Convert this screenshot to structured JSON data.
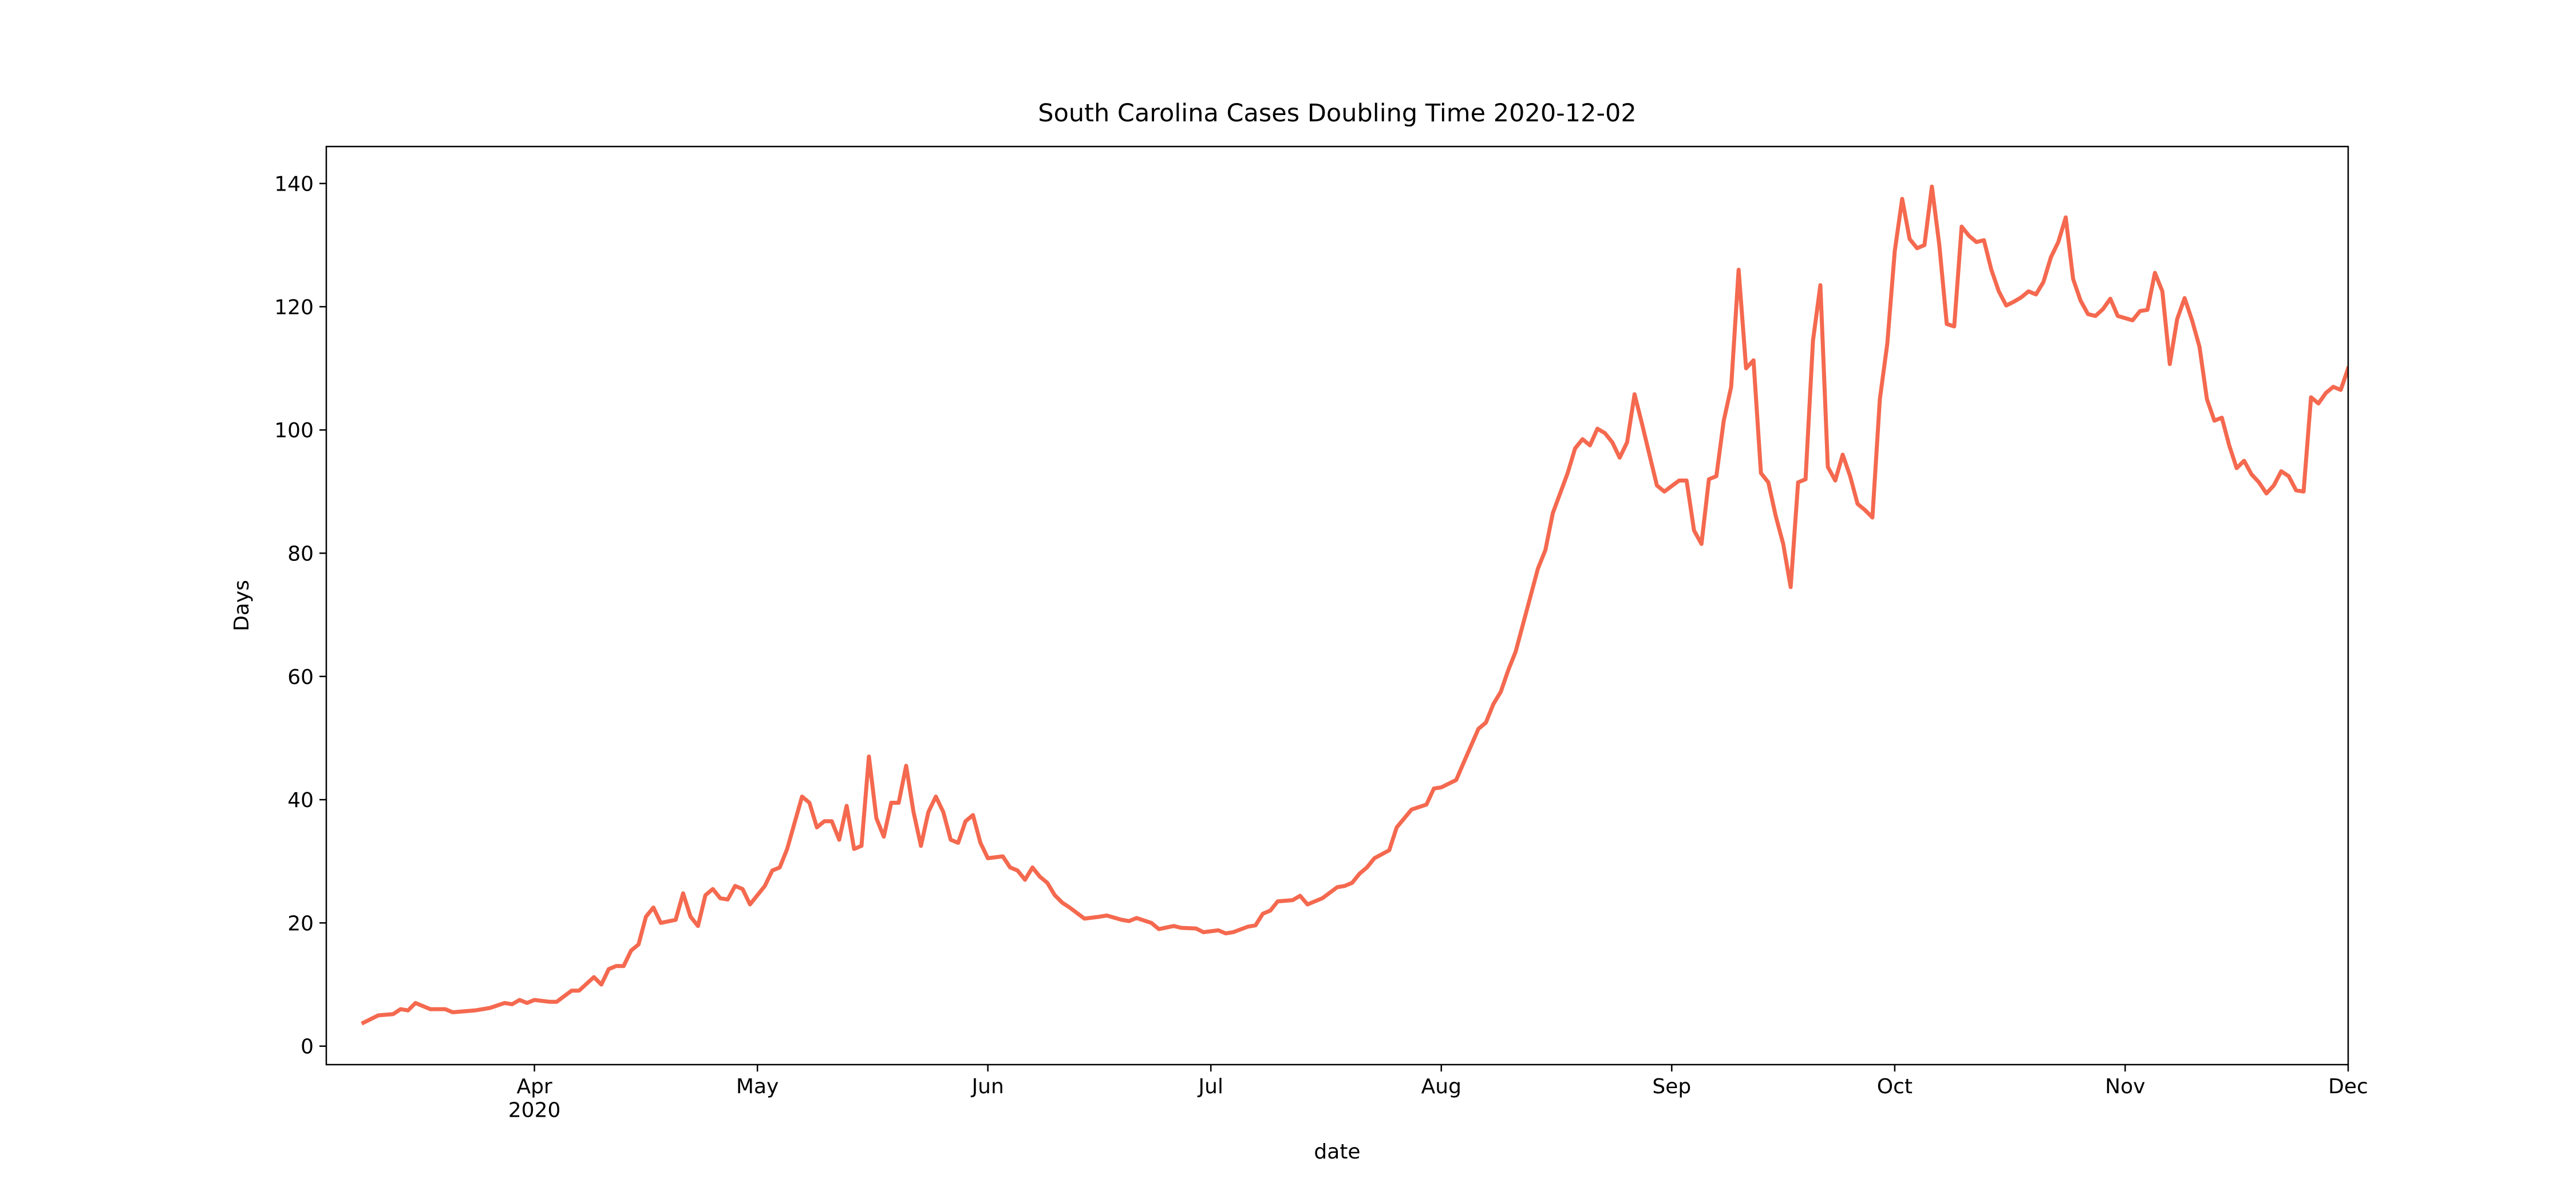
{
  "chart_data": {
    "type": "line",
    "title": "South Carolina Cases Doubling Time 2020-12-02",
    "x_label": "date",
    "y_label": "Days",
    "color": "#f4694f",
    "xlim": [
      "2020-03-04",
      "2020-12-01"
    ],
    "ylim": [
      -3,
      146
    ],
    "xticks": [
      {
        "value": "2020-04-01",
        "label": "Apr\n2020"
      },
      {
        "value": "2020-05-01",
        "label": "May"
      },
      {
        "value": "2020-06-01",
        "label": "Jun"
      },
      {
        "value": "2020-07-01",
        "label": "Jul"
      },
      {
        "value": "2020-08-01",
        "label": "Aug"
      },
      {
        "value": "2020-09-01",
        "label": "Sep"
      },
      {
        "value": "2020-10-01",
        "label": "Oct"
      },
      {
        "value": "2020-11-01",
        "label": "Nov"
      },
      {
        "value": "2020-12-01",
        "label": "Dec"
      }
    ],
    "yticks": [
      0,
      20,
      40,
      60,
      80,
      100,
      120,
      140
    ],
    "x": [
      "2020-03-09",
      "2020-03-11",
      "2020-03-13",
      "2020-03-14",
      "2020-03-15",
      "2020-03-16",
      "2020-03-18",
      "2020-03-20",
      "2020-03-21",
      "2020-03-24",
      "2020-03-26",
      "2020-03-28",
      "2020-03-29",
      "2020-03-30",
      "2020-03-31",
      "2020-04-01",
      "2020-04-03",
      "2020-04-04",
      "2020-04-06",
      "2020-04-07",
      "2020-04-09",
      "2020-04-10",
      "2020-04-11",
      "2020-04-12",
      "2020-04-13",
      "2020-04-14",
      "2020-04-15",
      "2020-04-16",
      "2020-04-17",
      "2020-04-18",
      "2020-04-20",
      "2020-04-21",
      "2020-04-22",
      "2020-04-23",
      "2020-04-24",
      "2020-04-25",
      "2020-04-26",
      "2020-04-27",
      "2020-04-28",
      "2020-04-29",
      "2020-04-30",
      "2020-05-02",
      "2020-05-03",
      "2020-05-04",
      "2020-05-05",
      "2020-05-07",
      "2020-05-08",
      "2020-05-09",
      "2020-05-10",
      "2020-05-11",
      "2020-05-12",
      "2020-05-13",
      "2020-05-14",
      "2020-05-15",
      "2020-05-16",
      "2020-05-17",
      "2020-05-18",
      "2020-05-19",
      "2020-05-20",
      "2020-05-21",
      "2020-05-22",
      "2020-05-23",
      "2020-05-24",
      "2020-05-25",
      "2020-05-26",
      "2020-05-27",
      "2020-05-28",
      "2020-05-29",
      "2020-05-30",
      "2020-05-31",
      "2020-06-01",
      "2020-06-03",
      "2020-06-04",
      "2020-06-05",
      "2020-06-06",
      "2020-06-07",
      "2020-06-08",
      "2020-06-09",
      "2020-06-10",
      "2020-06-11",
      "2020-06-12",
      "2020-06-14",
      "2020-06-16",
      "2020-06-17",
      "2020-06-19",
      "2020-06-20",
      "2020-06-21",
      "2020-06-23",
      "2020-06-24",
      "2020-06-26",
      "2020-06-27",
      "2020-06-29",
      "2020-06-30",
      "2020-07-02",
      "2020-07-03",
      "2020-07-04",
      "2020-07-06",
      "2020-07-07",
      "2020-07-08",
      "2020-07-09",
      "2020-07-10",
      "2020-07-12",
      "2020-07-13",
      "2020-07-14",
      "2020-07-15",
      "2020-07-16",
      "2020-07-18",
      "2020-07-19",
      "2020-07-20",
      "2020-07-21",
      "2020-07-22",
      "2020-07-23",
      "2020-07-25",
      "2020-07-26",
      "2020-07-28",
      "2020-07-30",
      "2020-07-31",
      "2020-08-01",
      "2020-08-03",
      "2020-08-04",
      "2020-08-06",
      "2020-08-07",
      "2020-08-08",
      "2020-08-09",
      "2020-08-10",
      "2020-08-11",
      "2020-08-12",
      "2020-08-13",
      "2020-08-14",
      "2020-08-15",
      "2020-08-16",
      "2020-08-18",
      "2020-08-19",
      "2020-08-20",
      "2020-08-21",
      "2020-08-22",
      "2020-08-23",
      "2020-08-24",
      "2020-08-25",
      "2020-08-26",
      "2020-08-27",
      "2020-08-28",
      "2020-08-29",
      "2020-08-30",
      "2020-08-31",
      "2020-09-02",
      "2020-09-03",
      "2020-09-04",
      "2020-09-05",
      "2020-09-06",
      "2020-09-07",
      "2020-09-08",
      "2020-09-09",
      "2020-09-10",
      "2020-09-11",
      "2020-09-12",
      "2020-09-13",
      "2020-09-14",
      "2020-09-15",
      "2020-09-16",
      "2020-09-17",
      "2020-09-18",
      "2020-09-19",
      "2020-09-20",
      "2020-09-21",
      "2020-09-22",
      "2020-09-23",
      "2020-09-24",
      "2020-09-25",
      "2020-09-26",
      "2020-09-27",
      "2020-09-28",
      "2020-09-29",
      "2020-09-30",
      "2020-10-01",
      "2020-10-02",
      "2020-10-03",
      "2020-10-04",
      "2020-10-05",
      "2020-10-06",
      "2020-10-07",
      "2020-10-08",
      "2020-10-09",
      "2020-10-10",
      "2020-10-11",
      "2020-10-12",
      "2020-10-13",
      "2020-10-14",
      "2020-10-15",
      "2020-10-16",
      "2020-10-17",
      "2020-10-18",
      "2020-10-19",
      "2020-10-20",
      "2020-10-21",
      "2020-10-22",
      "2020-10-23",
      "2020-10-24",
      "2020-10-25",
      "2020-10-26",
      "2020-10-27",
      "2020-10-28",
      "2020-10-29",
      "2020-10-30",
      "2020-10-31",
      "2020-11-02",
      "2020-11-03",
      "2020-11-04",
      "2020-11-05",
      "2020-11-06",
      "2020-11-07",
      "2020-11-08",
      "2020-11-09",
      "2020-11-10",
      "2020-11-11",
      "2020-11-12",
      "2020-11-13",
      "2020-11-14",
      "2020-11-15",
      "2020-11-16",
      "2020-11-17",
      "2020-11-18",
      "2020-11-19",
      "2020-11-20",
      "2020-11-21",
      "2020-11-22",
      "2020-11-23",
      "2020-11-24",
      "2020-11-25",
      "2020-11-26",
      "2020-11-27",
      "2020-11-28",
      "2020-11-29",
      "2020-11-30",
      "2020-12-01"
    ],
    "values": [
      3.8,
      5,
      5.2,
      6,
      5.8,
      7,
      6,
      6,
      5.5,
      5.8,
      6.2,
      7,
      6.8,
      7.5,
      7,
      7.5,
      7.2,
      7.2,
      9,
      9,
      11.2,
      10,
      12.5,
      13,
      13,
      15.5,
      16.5,
      21,
      22.5,
      20,
      20.5,
      24.8,
      21,
      19.5,
      24.5,
      25.5,
      24,
      23.8,
      26,
      25.5,
      23,
      26,
      28.5,
      29,
      32,
      40.5,
      39.5,
      35.5,
      36.5,
      36.5,
      33.5,
      39,
      32,
      32.5,
      47,
      37,
      34,
      39.5,
      39.5,
      45.5,
      38,
      32.5,
      38,
      40.5,
      38,
      33.5,
      33,
      36.5,
      37.5,
      33,
      30.5,
      30.8,
      29,
      28.5,
      27,
      29,
      27.5,
      26.5,
      24.5,
      23.3,
      22.5,
      20.7,
      21,
      21.2,
      20.5,
      20.3,
      20.8,
      20,
      19,
      19.5,
      19.2,
      19.1,
      18.5,
      18.8,
      18.3,
      18.5,
      19.4,
      19.6,
      21.5,
      22,
      23.5,
      23.7,
      24.4,
      23,
      23.5,
      24,
      25.8,
      26,
      26.5,
      28,
      29,
      30.5,
      31.8,
      35.5,
      38.4,
      39.2,
      41.8,
      42,
      43.2,
      46,
      51.5,
      52.5,
      55.5,
      57.5,
      61,
      64,
      68.5,
      73,
      77.5,
      80.5,
      86.5,
      93,
      97,
      98.5,
      97.5,
      100.2,
      99.5,
      98,
      95.5,
      98,
      105.8,
      101,
      96,
      91,
      90,
      91.8,
      91.8,
      83.7,
      81.5,
      92,
      92.5,
      101.5,
      107,
      126,
      110,
      111.3,
      93,
      91.5,
      86,
      81.5,
      74.5,
      91.5,
      92,
      114.5,
      123.5,
      94,
      91.8,
      96,
      92.5,
      88,
      87,
      85.8,
      105,
      114,
      129,
      137.5,
      131,
      129.5,
      130,
      139.5,
      130,
      117.2,
      116.8,
      133,
      131.5,
      130.5,
      130.8,
      126,
      122.5,
      120.2,
      120.8,
      121.5,
      122.5,
      122,
      124,
      128,
      130.5,
      134.5,
      124.5,
      121,
      118.8,
      118.5,
      119.6,
      121.3,
      118.5,
      117.8,
      119.3,
      119.5,
      125.5,
      122.5,
      110.7,
      118,
      121.4,
      117.8,
      113.5,
      105,
      101.5,
      102,
      97.5,
      93.8,
      95,
      92.8,
      91.5,
      89.7,
      91,
      93.3,
      92.5,
      90.2,
      90,
      105.3,
      104.3,
      106,
      107,
      106.5,
      110
    ]
  }
}
